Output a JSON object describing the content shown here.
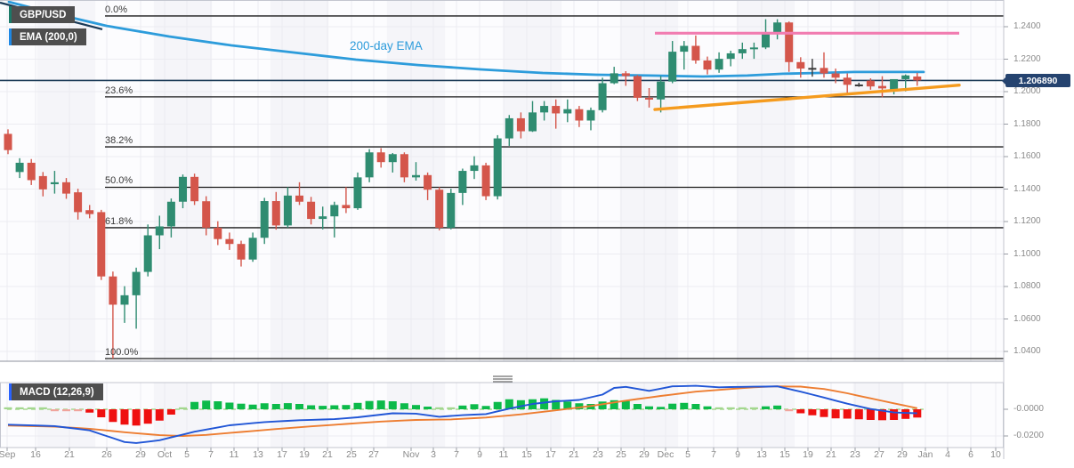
{
  "chart_data": {
    "type": "candlestick_with_macd",
    "symbol": "GBP/USD",
    "ema_badge": "EMA (200,0)",
    "macd_badge": "MACD (12,26,9)",
    "ema_annotation": "200-day EMA",
    "last_price": "1.206890",
    "price_axis_ticks": [
      {
        "label": "1.2400",
        "value": 1.24
      },
      {
        "label": "1.2200",
        "value": 1.22
      },
      {
        "label": "1.2000",
        "value": 1.2
      },
      {
        "label": "1.1800",
        "value": 1.18
      },
      {
        "label": "1.1600",
        "value": 1.16
      },
      {
        "label": "1.1400",
        "value": 1.14
      },
      {
        "label": "1.1200",
        "value": 1.12
      },
      {
        "label": "1.1000",
        "value": 1.1
      },
      {
        "label": "1.0800",
        "value": 1.08
      },
      {
        "label": "1.0600",
        "value": 1.06
      },
      {
        "label": "1.0400",
        "value": 1.04
      }
    ],
    "macd_axis_ticks": [
      {
        "label": "-0.0000",
        "value": 0
      },
      {
        "label": "-0.0200",
        "value": -0.02
      }
    ],
    "x_ticks": [
      [
        "Sep",
        8
      ],
      [
        "16",
        40
      ],
      [
        "21",
        78
      ],
      [
        "26",
        120
      ],
      [
        "29",
        158
      ],
      [
        "Oct",
        185
      ],
      [
        "5",
        210
      ],
      [
        "7",
        237
      ],
      [
        "11",
        263
      ],
      [
        "13",
        290
      ],
      [
        "17",
        317
      ],
      [
        "19",
        342
      ],
      [
        "21",
        368
      ],
      [
        "25",
        395
      ],
      [
        "27",
        420
      ],
      [
        "Nov",
        462
      ],
      [
        "3",
        487
      ],
      [
        "7",
        513
      ],
      [
        "9",
        539
      ],
      [
        "11",
        566
      ],
      [
        "15",
        592
      ],
      [
        "17",
        619
      ],
      [
        "21",
        645
      ],
      [
        "23",
        672
      ],
      [
        "25",
        698
      ],
      [
        "29",
        724
      ],
      [
        "Dec",
        748
      ],
      [
        "5",
        773
      ],
      [
        "7",
        802
      ],
      [
        "9",
        829
      ],
      [
        "13",
        856
      ],
      [
        "15",
        882
      ],
      [
        "19",
        908
      ],
      [
        "21",
        934
      ],
      [
        "23",
        961
      ],
      [
        "27",
        988
      ],
      [
        "29",
        1014
      ],
      [
        "Jan",
        1040
      ],
      [
        "4",
        1065
      ],
      [
        "6",
        1091
      ],
      [
        "10",
        1119
      ]
    ],
    "fib_levels": [
      {
        "label": "0.0%",
        "price": 1.2466
      },
      {
        "label": "23.6%",
        "price": 1.1968
      },
      {
        "label": "38.2%",
        "price": 1.166
      },
      {
        "label": "50.0%",
        "price": 1.1411
      },
      {
        "label": "61.8%",
        "price": 1.1162
      },
      {
        "label": "100.0%",
        "price": 1.0356
      }
    ],
    "resistance_line": {
      "price": 1.236,
      "x1": 736,
      "x2": 1078
    },
    "support_trendline": {
      "x1": 736,
      "price1": 1.189,
      "x2": 1078,
      "price2": 1.204
    },
    "descending_trendline": {
      "x1": 0,
      "price1": 1.2548,
      "x2": 115,
      "price2": 1.2384
    },
    "current_price_line": 1.20689,
    "ema_points": [
      [
        10,
        1.2553
      ],
      [
        60,
        1.2482
      ],
      [
        120,
        1.2405
      ],
      [
        190,
        1.234
      ],
      [
        260,
        1.2285
      ],
      [
        330,
        1.2241
      ],
      [
        400,
        1.2197
      ],
      [
        470,
        1.2164
      ],
      [
        540,
        1.2137
      ],
      [
        610,
        1.2115
      ],
      [
        670,
        1.2104
      ],
      [
        730,
        1.2099
      ],
      [
        790,
        1.2093
      ],
      [
        840,
        1.2099
      ],
      [
        880,
        1.211
      ],
      [
        920,
        1.2115
      ],
      [
        960,
        1.2121
      ],
      [
        1000,
        1.2121
      ],
      [
        1038,
        1.2121
      ]
    ],
    "candles": [
      [
        1.174,
        1.1768,
        1.1615,
        1.164
      ],
      [
        1.1505,
        1.159,
        1.1468,
        1.1562
      ],
      [
        1.1562,
        1.1585,
        1.1425,
        1.1455
      ],
      [
        1.148,
        1.1505,
        1.1355,
        1.1398
      ],
      [
        1.143,
        1.1512,
        1.1372,
        1.1442
      ],
      [
        1.1442,
        1.1468,
        1.134,
        1.1372
      ],
      [
        1.138,
        1.1402,
        1.1212,
        1.1258
      ],
      [
        1.127,
        1.1302,
        1.122,
        1.1246
      ],
      [
        1.1258,
        1.1272,
        1.084,
        1.0862
      ],
      [
        1.0862,
        1.0892,
        1.0356,
        1.0688
      ],
      [
        1.0688,
        1.0802,
        1.0576,
        1.0746
      ],
      [
        1.0746,
        1.0916,
        1.054,
        1.089
      ],
      [
        1.089,
        1.1182,
        1.0862,
        1.1115
      ],
      [
        1.1115,
        1.1236,
        1.103,
        1.117
      ],
      [
        1.117,
        1.1342,
        1.1102,
        1.1322
      ],
      [
        1.1322,
        1.149,
        1.1282,
        1.1475
      ],
      [
        1.1475,
        1.1495,
        1.1302,
        1.1325
      ],
      [
        1.1325,
        1.1356,
        1.1115,
        1.1162
      ],
      [
        1.1162,
        1.1202,
        1.1055,
        1.1092
      ],
      [
        1.1092,
        1.1132,
        1.1025,
        1.1062
      ],
      [
        1.1062,
        1.1082,
        1.0923,
        1.0966
      ],
      [
        1.0966,
        1.1132,
        1.0952,
        1.11
      ],
      [
        1.11,
        1.1346,
        1.1062,
        1.1326
      ],
      [
        1.1326,
        1.1382,
        1.115,
        1.1176
      ],
      [
        1.1176,
        1.1412,
        1.1162,
        1.136
      ],
      [
        1.136,
        1.1442,
        1.1302,
        1.1322
      ],
      [
        1.1322,
        1.1352,
        1.1182,
        1.1216
      ],
      [
        1.1216,
        1.1292,
        1.1152,
        1.1232
      ],
      [
        1.1232,
        1.1322,
        1.1102,
        1.1302
      ],
      [
        1.1302,
        1.1412,
        1.1252,
        1.1282
      ],
      [
        1.1282,
        1.1502,
        1.1272,
        1.1472
      ],
      [
        1.1472,
        1.1646,
        1.1442,
        1.1626
      ],
      [
        1.1626,
        1.1652,
        1.1532,
        1.1566
      ],
      [
        1.1566,
        1.1622,
        1.1502,
        1.1615
      ],
      [
        1.1615,
        1.1626,
        1.1442,
        1.1472
      ],
      [
        1.1472,
        1.1566,
        1.1452,
        1.1486
      ],
      [
        1.1486,
        1.1502,
        1.1332,
        1.1396
      ],
      [
        1.1396,
        1.1412,
        1.1146,
        1.1162
      ],
      [
        1.1162,
        1.1402,
        1.1152,
        1.1376
      ],
      [
        1.1376,
        1.1526,
        1.1302,
        1.1512
      ],
      [
        1.1512,
        1.1602,
        1.1462,
        1.1546
      ],
      [
        1.1546,
        1.1562,
        1.1332,
        1.1356
      ],
      [
        1.1356,
        1.1732,
        1.1336,
        1.1712
      ],
      [
        1.1712,
        1.1856,
        1.1666,
        1.1836
      ],
      [
        1.1836,
        1.1872,
        1.1712,
        1.1756
      ],
      [
        1.1756,
        1.1942,
        1.1752,
        1.1872
      ],
      [
        1.1872,
        1.1942,
        1.1822,
        1.1912
      ],
      [
        1.1912,
        1.1952,
        1.1772,
        1.1866
      ],
      [
        1.1866,
        1.1952,
        1.1812,
        1.1892
      ],
      [
        1.1892,
        1.1912,
        1.1782,
        1.1822
      ],
      [
        1.1822,
        1.1902,
        1.1762,
        1.1886
      ],
      [
        1.1886,
        1.2086,
        1.1872,
        1.2052
      ],
      [
        1.2052,
        1.2153,
        1.2046,
        1.2113
      ],
      [
        1.2113,
        1.2126,
        1.2036,
        1.2096
      ],
      [
        1.2096,
        1.2102,
        1.1942,
        1.1962
      ],
      [
        1.1962,
        1.2022,
        1.1902,
        1.1952
      ],
      [
        1.1952,
        1.2096,
        1.1872,
        1.2062
      ],
      [
        1.2062,
        1.2312,
        1.2052,
        1.2246
      ],
      [
        1.2246,
        1.2312,
        1.2136,
        1.2282
      ],
      [
        1.2282,
        1.2346,
        1.2172,
        1.2192
      ],
      [
        1.2192,
        1.2216,
        1.2106,
        1.2136
      ],
      [
        1.2136,
        1.2242,
        1.2116,
        1.2202
      ],
      [
        1.2202,
        1.2252,
        1.2156,
        1.2236
      ],
      [
        1.2236,
        1.2302,
        1.2202,
        1.2262
      ],
      [
        1.2262,
        1.2302,
        1.2202,
        1.2272
      ],
      [
        1.2272,
        1.2446,
        1.2262,
        1.2366
      ],
      [
        1.2366,
        1.2446,
        1.2322,
        1.2426
      ],
      [
        1.2426,
        1.2432,
        1.2122,
        1.2182
      ],
      [
        1.2182,
        1.2212,
        1.2086,
        1.2142
      ],
      [
        1.2142,
        1.2202,
        1.2092,
        1.2146
      ],
      [
        1.2146,
        1.2242,
        1.2086,
        1.2112
      ],
      [
        1.2112,
        1.2142,
        1.2052,
        1.2086
      ],
      [
        1.2086,
        1.2112,
        1.1993,
        1.2042
      ],
      [
        1.2042,
        1.2055,
        1.203,
        1.2044
      ],
      [
        1.2068,
        1.2082,
        1.2012,
        1.2032
      ],
      [
        1.2035,
        1.2095,
        1.1966,
        1.202
      ],
      [
        1.2013,
        1.2062,
        1.1983,
        1.2077
      ],
      [
        1.2077,
        1.2106,
        1.2002,
        1.21
      ],
      [
        1.2093,
        1.2116,
        1.2036,
        1.2069
      ]
    ],
    "macd": {
      "histogram": [
        6,
        5,
        3,
        1,
        -2,
        -5,
        -12,
        -25,
        -60,
        -95,
        -115,
        -122,
        -108,
        -85,
        -40,
        10,
        55,
        65,
        60,
        50,
        42,
        35,
        45,
        40,
        46,
        40,
        30,
        26,
        30,
        32,
        48,
        62,
        66,
        60,
        45,
        32,
        20,
        8,
        14,
        28,
        38,
        25,
        55,
        75,
        68,
        75,
        82,
        70,
        58,
        45,
        40,
        58,
        68,
        62,
        40,
        22,
        18,
        42,
        48,
        40,
        22,
        12,
        8,
        6,
        8,
        22,
        28,
        -8,
        -30,
        -45,
        -58,
        -68,
        -70,
        -75,
        -80,
        -82,
        -80,
        -72,
        -62
      ],
      "macd_line": [
        [
          0,
          -115
        ],
        [
          4,
          -126
        ],
        [
          7,
          -158
        ],
        [
          10,
          -245
        ],
        [
          11,
          -253
        ],
        [
          13,
          -232
        ],
        [
          16,
          -168
        ],
        [
          19,
          -120
        ],
        [
          22,
          -96
        ],
        [
          25,
          -82
        ],
        [
          28,
          -74
        ],
        [
          30,
          -60
        ],
        [
          33,
          -30
        ],
        [
          35,
          -33
        ],
        [
          37,
          -56
        ],
        [
          39,
          -44
        ],
        [
          41,
          -36
        ],
        [
          43,
          5
        ],
        [
          45,
          40
        ],
        [
          47,
          60
        ],
        [
          49,
          70
        ],
        [
          51,
          110
        ],
        [
          52,
          160
        ],
        [
          53,
          168
        ],
        [
          55,
          138
        ],
        [
          57,
          172
        ],
        [
          59,
          176
        ],
        [
          61,
          165
        ],
        [
          63,
          168
        ],
        [
          65,
          170
        ],
        [
          66,
          172
        ],
        [
          68,
          132
        ],
        [
          70,
          88
        ],
        [
          72,
          42
        ],
        [
          74,
          2
        ],
        [
          76,
          -24
        ],
        [
          78,
          -30
        ]
      ],
      "signal_line": [
        [
          0,
          -122
        ],
        [
          4,
          -130
        ],
        [
          7,
          -146
        ],
        [
          10,
          -172
        ],
        [
          13,
          -194
        ],
        [
          15,
          -200
        ],
        [
          17,
          -192
        ],
        [
          20,
          -170
        ],
        [
          23,
          -148
        ],
        [
          26,
          -128
        ],
        [
          29,
          -110
        ],
        [
          32,
          -92
        ],
        [
          35,
          -80
        ],
        [
          38,
          -76
        ],
        [
          41,
          -62
        ],
        [
          44,
          -38
        ],
        [
          47,
          -8
        ],
        [
          50,
          25
        ],
        [
          53,
          65
        ],
        [
          56,
          100
        ],
        [
          59,
          132
        ],
        [
          62,
          152
        ],
        [
          64,
          165
        ],
        [
          66,
          172
        ],
        [
          68,
          170
        ],
        [
          70,
          152
        ],
        [
          72,
          120
        ],
        [
          74,
          82
        ],
        [
          76,
          45
        ],
        [
          78,
          8
        ]
      ]
    },
    "colors": {
      "up": "#2f8c71",
      "down": "#d4564b",
      "flat": "#3a3a3a",
      "ema": "#2d9cdb",
      "resistance": "#f17cb0",
      "support": "#f59b1e",
      "navy": "#1b3a57",
      "macd_line": "#2156d6",
      "signal_line": "#ed7d31",
      "hist_pos": "#0cba4a",
      "hist_neg": "#ef1010",
      "hist_pos_weak": "#a3d78e",
      "hist_neg_weak": "#f0a49c",
      "fib": "#1a1a1a",
      "grid": "#ececf1",
      "axis_text": "#8a8a8a",
      "accent_symbol": "#1a7a68",
      "accent_ema": "#1e88e5",
      "accent_macd": "#2962ff"
    }
  }
}
